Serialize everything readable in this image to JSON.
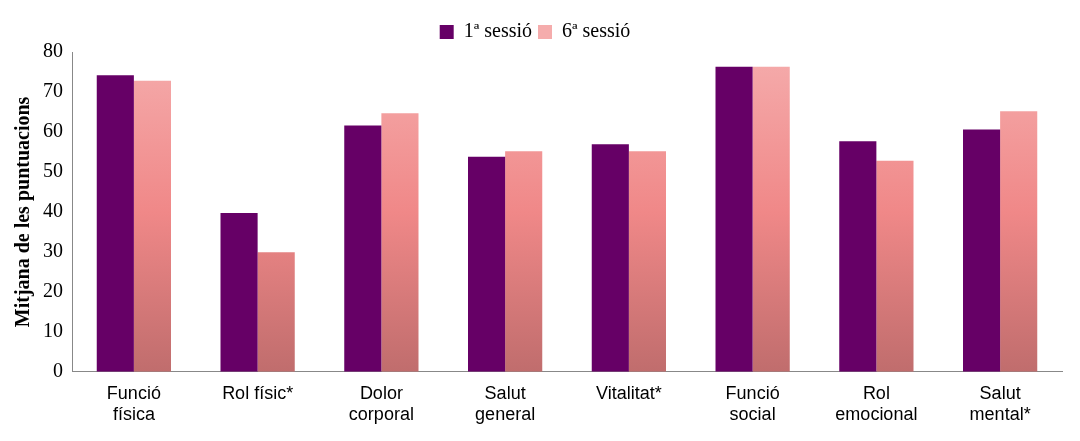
{
  "chart_data": {
    "type": "bar",
    "ylabel": "Mitjana de les puntuacions",
    "categories": [
      "Funció física",
      "Rol físic*",
      "Dolor corporal",
      "Salut general",
      "Vitalitat*",
      "Funció social",
      "Rol emocional",
      "Salut mental*"
    ],
    "series": [
      {
        "name": "1ª sessió",
        "color": "#660066",
        "values": [
          74.2,
          39.7,
          61.6,
          53.8,
          56.9,
          76.3,
          57.7,
          60.6
        ]
      },
      {
        "name": "6ª sessió",
        "color": "#f08888",
        "values": [
          72.8,
          29.9,
          64.7,
          55.2,
          55.2,
          76.3,
          52.8,
          65.2
        ]
      }
    ],
    "ylim": [
      0,
      80
    ],
    "yticks": [
      0,
      10,
      20,
      30,
      40,
      50,
      60,
      70,
      80
    ],
    "grid": false,
    "legend": "top"
  }
}
